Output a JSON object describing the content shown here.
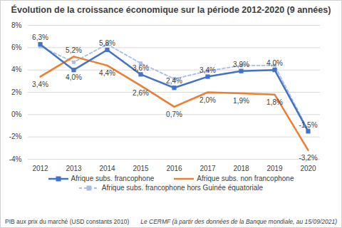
{
  "chart_data": {
    "type": "line",
    "title": "Évolution de la croissance économique sur la période 2012-2020  (9 années)",
    "caption": "PIB aux prix du marché (USD constants 2010)",
    "source": "Le CERMF (à partir des données de la Banque mondiale, au 15/09/2021)",
    "categories": [
      "2012",
      "2013",
      "2014",
      "2015",
      "2016",
      "2017",
      "2018",
      "2019",
      "2020"
    ],
    "series": [
      {
        "name": "Afrique subs. francophone",
        "color": "#4472c4",
        "marker": "square",
        "line_style": "solid",
        "values": [
          6.3,
          4.0,
          5.8,
          3.6,
          2.4,
          3.4,
          3.9,
          4.0,
          -1.5
        ],
        "value_labels": [
          "6,3%",
          "4,0%",
          "5,8%",
          "3,6%",
          "2,4%",
          "3,4%",
          "3,9%",
          "4,0%",
          "-1,5%"
        ]
      },
      {
        "name": "Afrique subs. non francophone",
        "color": "#ed7d31",
        "marker": "none",
        "line_style": "solid",
        "values": [
          3.4,
          5.2,
          4.4,
          2.6,
          0.7,
          2.0,
          1.9,
          1.8,
          -3.2
        ],
        "value_labels": [
          "3,4%",
          "5,2%",
          "4,4%",
          "2,6%",
          "0,7%",
          "2,0%",
          "1,9%",
          "1,8%",
          "-3,2%"
        ]
      },
      {
        "name": "Afrique subs. francophone hors Guinée équatoriale",
        "color": "#a9bde6",
        "marker": "square",
        "line_style": "dashed",
        "values": [
          6.1,
          4.7,
          6.3,
          4.6,
          3.2,
          3.9,
          4.4,
          4.4,
          -1.4
        ]
      }
    ],
    "ylim": [
      -4,
      8
    ],
    "yticks": [
      {
        "value": -4,
        "label": "-4%"
      },
      {
        "value": -2,
        "label": "-2%"
      },
      {
        "value": 0,
        "label": "0%"
      },
      {
        "value": 2,
        "label": "2%"
      },
      {
        "value": 4,
        "label": "4%"
      },
      {
        "value": 6,
        "label": "6%"
      },
      {
        "value": 8,
        "label": "8%"
      }
    ],
    "grid": true,
    "data_labels": true,
    "legend": "bottom"
  }
}
